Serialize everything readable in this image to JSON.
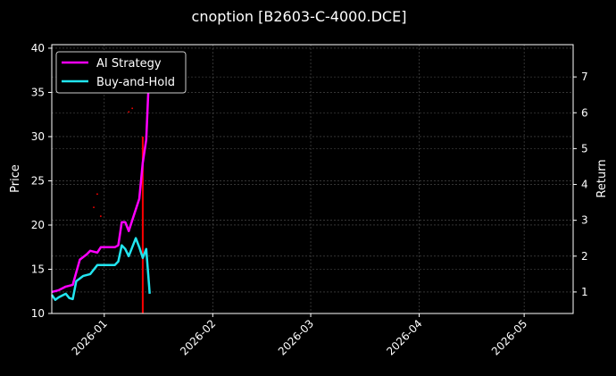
{
  "chart_data": {
    "type": "line",
    "title": "cnoption [B2603-C-4000.DCE]",
    "ylabel": "Price",
    "y2label": "Return",
    "x_ticks": [
      "2026-01",
      "2026-02",
      "2026-03",
      "2026-04",
      "2026-05"
    ],
    "x_tick_dates": [
      "2026-01-01",
      "2026-02-01",
      "2026-03-01",
      "2026-04-01",
      "2026-05-01"
    ],
    "xlim": [
      "2025-12-17",
      "2026-05-15"
    ],
    "ylim": [
      10,
      40.4
    ],
    "y_ticks": [
      10,
      15,
      20,
      25,
      30,
      35,
      40
    ],
    "y2lim": [
      0.4,
      7.9
    ],
    "y2_ticks": [
      1,
      2,
      3,
      4,
      5,
      6,
      7
    ],
    "grid": true,
    "legend": "top-left",
    "colors": {
      "background": "#000000",
      "ai": "#ff00ff",
      "bh": "#22e5f0",
      "marker": "#ff0000",
      "grid": "#555555",
      "axis": "#ffffff"
    },
    "series": [
      {
        "name": "AI Strategy",
        "axis": "right",
        "color": "#ff00ff",
        "x": [
          "2025-12-17",
          "2025-12-19",
          "2025-12-21",
          "2025-12-23",
          "2025-12-25",
          "2025-12-27",
          "2025-12-28",
          "2025-12-30",
          "2025-12-31",
          "2026-01-01",
          "2026-01-04",
          "2026-01-05",
          "2026-01-06",
          "2026-01-07",
          "2026-01-08",
          "2026-01-09",
          "2026-01-11",
          "2026-01-12",
          "2026-01-13",
          "2026-01-14"
        ],
        "values": [
          1.0,
          1.05,
          1.15,
          1.2,
          1.9,
          2.05,
          2.15,
          2.1,
          2.25,
          2.25,
          2.25,
          2.3,
          2.95,
          2.95,
          2.7,
          3.0,
          3.6,
          4.6,
          5.25,
          7.5
        ]
      },
      {
        "name": "Buy-and-Hold",
        "axis": "right",
        "color": "#22e5f0",
        "x": [
          "2025-12-17",
          "2025-12-18",
          "2025-12-19",
          "2025-12-21",
          "2025-12-22",
          "2025-12-23",
          "2025-12-24",
          "2025-12-26",
          "2025-12-28",
          "2025-12-30",
          "2025-12-31",
          "2026-01-01",
          "2026-01-04",
          "2026-01-05",
          "2026-01-06",
          "2026-01-07",
          "2026-01-08",
          "2026-01-10",
          "2026-01-11",
          "2026-01-12",
          "2026-01-13",
          "2026-01-14"
        ],
        "values": [
          0.92,
          0.78,
          0.85,
          0.95,
          0.83,
          0.8,
          1.3,
          1.45,
          1.5,
          1.75,
          1.75,
          1.75,
          1.75,
          1.85,
          2.3,
          2.2,
          2.0,
          2.5,
          2.25,
          1.95,
          2.2,
          0.95
        ]
      }
    ],
    "markers": [
      {
        "type": "vline",
        "x": "2026-01-12",
        "y_from": 10,
        "y_to": 30,
        "axis": "left",
        "color": "#ff0000"
      },
      {
        "type": "dots",
        "axis": "left",
        "color": "#ff0000",
        "points": [
          [
            "2025-12-30",
            23.5
          ],
          [
            "2025-12-29",
            22
          ],
          [
            "2025-12-31",
            21
          ],
          [
            "2026-01-08",
            32.8
          ],
          [
            "2026-01-09",
            33.2
          ]
        ]
      }
    ]
  }
}
